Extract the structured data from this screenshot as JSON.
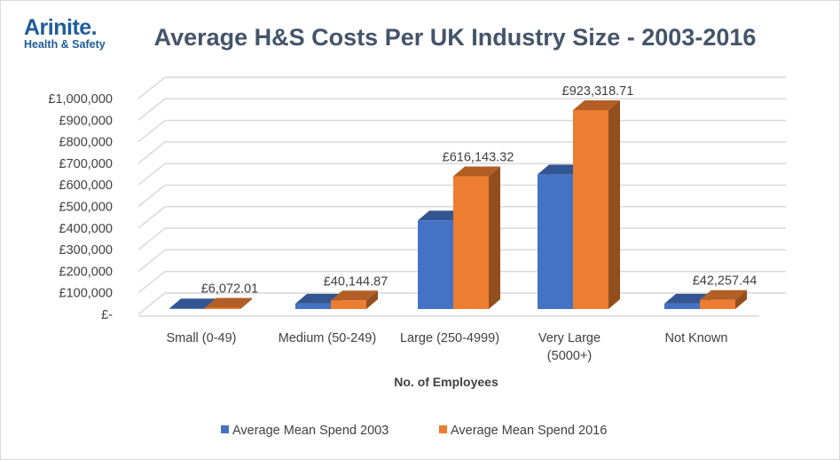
{
  "logo": {
    "name": "Arinite.",
    "tagline": "Health & Safety"
  },
  "chart_data": {
    "type": "bar",
    "title": "Average H&S Costs Per UK Industry Size - 2003-2016",
    "xlabel": "No. of Employees",
    "ylabel": "",
    "ylim": [
      0,
      1000000
    ],
    "yticks": [
      0,
      100000,
      200000,
      300000,
      400000,
      500000,
      600000,
      700000,
      800000,
      900000,
      1000000
    ],
    "ytick_labels": [
      "£-",
      "£100,000",
      "£200,000",
      "£300,000",
      "£400,000",
      "£500,000",
      "£600,000",
      "£700,000",
      "£800,000",
      "£900,000",
      "£1,000,000"
    ],
    "categories": [
      "Small (0-49)",
      "Medium (50-249)",
      "Large (250-4999)",
      "Very Large (5000+)",
      "Not Known"
    ],
    "category_lines": [
      [
        "Small (0-49)"
      ],
      [
        "Medium (50-249)"
      ],
      [
        "Large (250-4999)"
      ],
      [
        "Very Large",
        "(5000+)"
      ],
      [
        "Not Known"
      ]
    ],
    "series": [
      {
        "name": "Average Mean Spend 2003",
        "color": "#4472c4",
        "values": [
          3000,
          25000,
          411000,
          625000,
          25000
        ],
        "labels": [
          "",
          "",
          "",
          "",
          ""
        ]
      },
      {
        "name": "Average Mean Spend 2016",
        "color": "#ed7d31",
        "values": [
          6072.01,
          40144.87,
          616143.32,
          923318.71,
          42257.44
        ],
        "labels": [
          "£6,072.01",
          "£40,144.87",
          "£616,143.32",
          "£923,318.71",
          "£42,257.44"
        ]
      }
    ],
    "grid": true,
    "style": "3d-column",
    "legend": "bottom"
  }
}
